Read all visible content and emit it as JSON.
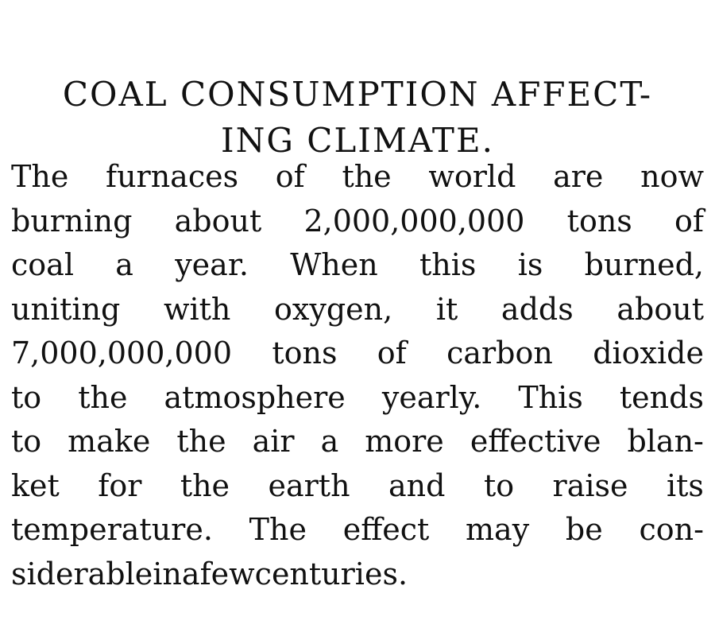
{
  "article": {
    "headline": [
      "COAL CONSUMPTION AFFECT-",
      "ING CLIMATE."
    ],
    "lines": [
      [
        "The",
        "furnaces",
        "of",
        "the",
        "world",
        "are",
        "now"
      ],
      [
        "burning",
        "about",
        "2,000,000,000",
        "tons",
        "of"
      ],
      [
        "coal",
        "a",
        "year.",
        "When",
        "this",
        "is",
        "burned,"
      ],
      [
        "uniting",
        "with",
        "oxygen,",
        "it",
        "adds",
        "about"
      ],
      [
        "7,000,000,000",
        "tons",
        "of",
        "carbon",
        "dioxide"
      ],
      [
        "to",
        "the",
        "atmosphere",
        "yearly.",
        "This",
        "tends"
      ],
      [
        "to",
        "make",
        "the",
        "air",
        "a",
        "more",
        "effective",
        "blan-"
      ],
      [
        "ket",
        "for",
        "the",
        "earth",
        "and",
        "to",
        "raise",
        "its"
      ],
      [
        "temperature.",
        "The",
        "effect",
        "may",
        "be",
        "con-"
      ],
      [
        "siderable",
        "in",
        "a",
        "few",
        "centuries."
      ]
    ]
  }
}
